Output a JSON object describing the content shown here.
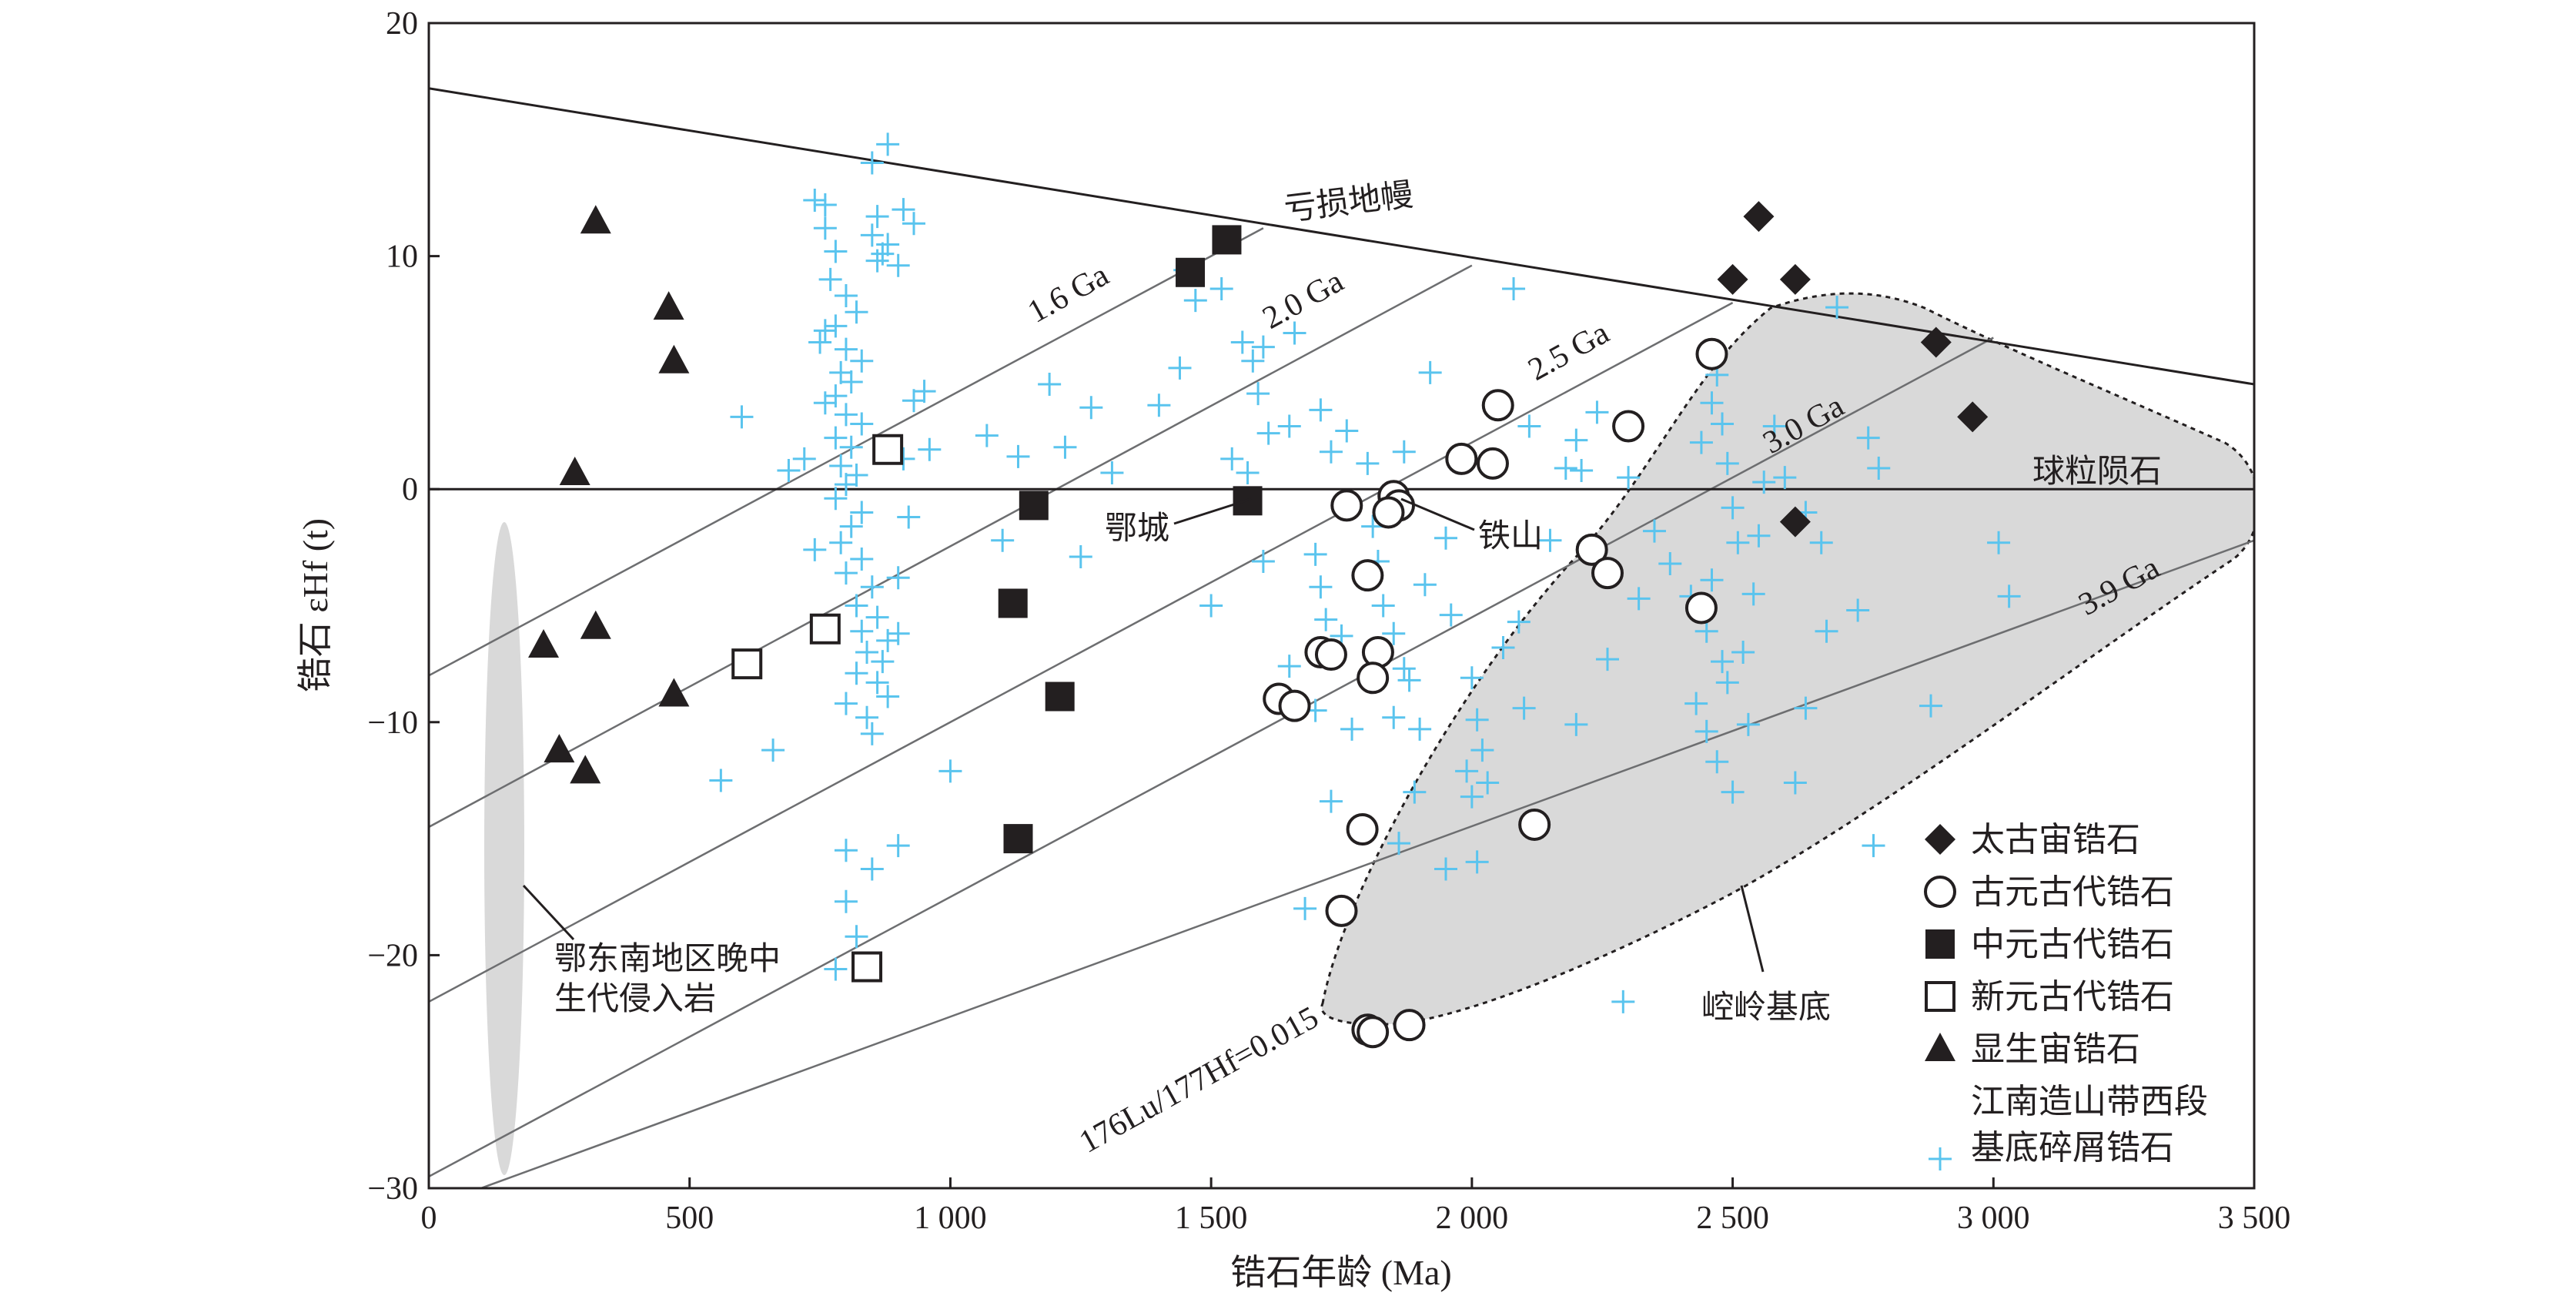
{
  "chart_data": {
    "type": "scatter",
    "xlabel": "锆石年龄 (Ma)",
    "ylabel": "锆石 εHf (t)",
    "xlim": [
      0,
      3500
    ],
    "ylim": [
      -30,
      20
    ],
    "x_ticks": [
      0,
      500,
      1000,
      1500,
      2000,
      2500,
      3000,
      3500
    ],
    "x_tick_labels": [
      "0",
      "500",
      "1 000",
      "1 500",
      "2 000",
      "2 500",
      "3 000",
      "3 500"
    ],
    "y_ticks": [
      -30,
      -20,
      -10,
      0,
      10,
      20
    ],
    "y_tick_labels": [
      "−30",
      "−20",
      "−10",
      "0",
      "10",
      "20"
    ],
    "grid": false,
    "legend_position": "bottom-right",
    "reference_lines": [
      {
        "name": "亏损地幔",
        "points": [
          [
            0,
            17.2
          ],
          [
            3500,
            4.5
          ]
        ]
      },
      {
        "name": "球粒陨石",
        "points": [
          [
            0,
            0
          ],
          [
            3500,
            0
          ]
        ]
      }
    ],
    "evolution_lines": [
      {
        "name": "1.6 Ga",
        "points": [
          [
            0,
            -8.0
          ],
          [
            1600,
            11.2
          ]
        ]
      },
      {
        "name": "2.0 Ga",
        "points": [
          [
            0,
            -14.5
          ],
          [
            2000,
            9.6
          ]
        ]
      },
      {
        "name": "2.5 Ga",
        "points": [
          [
            0,
            -22.0
          ],
          [
            2500,
            8.0
          ]
        ]
      },
      {
        "name": "3.0 Ga",
        "points": [
          [
            0,
            -29.5
          ],
          [
            3000,
            6.5
          ]
        ]
      },
      {
        "name": "3.9 Ga",
        "points": [
          [
            100,
            -30.0
          ],
          [
            3500,
            -2.2
          ]
        ]
      }
    ],
    "evolution_line_label": "176Lu/177Hf=0.015",
    "regions": [
      {
        "name": "崆岭基底",
        "fill": "#d9d9d9"
      },
      {
        "name": "鄂东南地区晚中生代侵入岩",
        "fill": "#d9d9d9"
      }
    ],
    "annotations": [
      "亏损地幔",
      "球粒陨石",
      "鄂城",
      "铁山",
      "崆岭基底",
      "鄂东南地区晚中生代侵入岩",
      "1.6 Ga",
      "2.0 Ga",
      "2.5 Ga",
      "3.0 Ga",
      "3.9 Ga",
      "176Lu/177Hf=0.015"
    ],
    "series": [
      {
        "name": "太古宙锆石",
        "marker": "diamond",
        "points": [
          [
            2550,
            11.7
          ],
          [
            2500,
            9.0
          ],
          [
            2620,
            9.0
          ],
          [
            2890,
            6.3
          ],
          [
            2960,
            3.1
          ],
          [
            2620,
            -1.4
          ]
        ]
      },
      {
        "name": "古元古代锆石",
        "marker": "circle-open",
        "points": [
          [
            2460,
            5.8
          ],
          [
            2050,
            3.6
          ],
          [
            2300,
            2.7
          ],
          [
            1980,
            1.3
          ],
          [
            2040,
            1.1
          ],
          [
            1760,
            -0.7
          ],
          [
            1850,
            -0.3
          ],
          [
            1860,
            -0.7
          ],
          [
            1840,
            -1.0
          ],
          [
            2230,
            -2.6
          ],
          [
            2260,
            -3.6
          ],
          [
            1800,
            -3.7
          ],
          [
            2440,
            -5.1
          ],
          [
            1710,
            -7.0
          ],
          [
            1730,
            -7.1
          ],
          [
            1820,
            -7.0
          ],
          [
            1810,
            -8.1
          ],
          [
            1630,
            -9.0
          ],
          [
            1660,
            -9.3
          ],
          [
            1790,
            -14.6
          ],
          [
            2120,
            -14.4
          ],
          [
            1750,
            -18.1
          ],
          [
            1800,
            -23.2
          ],
          [
            1810,
            -23.3
          ],
          [
            1880,
            -23.0
          ]
        ]
      },
      {
        "name": "中元古代锆石",
        "marker": "square-filled",
        "points": [
          [
            1460,
            9.3
          ],
          [
            1530,
            10.7
          ],
          [
            1160,
            -0.7
          ],
          [
            1570,
            -0.5
          ],
          [
            1120,
            -4.9
          ],
          [
            1210,
            -8.9
          ],
          [
            1130,
            -15.0
          ]
        ]
      },
      {
        "name": "新元古代锆石",
        "marker": "square-open",
        "points": [
          [
            880,
            1.7
          ],
          [
            760,
            -6.0
          ],
          [
            610,
            -7.5
          ],
          [
            840,
            -20.5
          ]
        ]
      },
      {
        "name": "显生宙锆石",
        "marker": "triangle",
        "points": [
          [
            320,
            11.5
          ],
          [
            460,
            7.8
          ],
          [
            470,
            5.5
          ],
          [
            280,
            0.7
          ],
          [
            220,
            -6.7
          ],
          [
            320,
            -5.9
          ],
          [
            470,
            -8.8
          ],
          [
            250,
            -11.2
          ],
          [
            300,
            -12.1
          ]
        ]
      },
      {
        "name": "江南造山带西段基底碎屑锆石",
        "marker": "plus",
        "points": [
          [
            880,
            14.8
          ],
          [
            850,
            14.0
          ],
          [
            910,
            12.0
          ],
          [
            860,
            11.7
          ],
          [
            930,
            11.4
          ],
          [
            850,
            10.9
          ],
          [
            880,
            10.5
          ],
          [
            870,
            10.1
          ],
          [
            860,
            9.8
          ],
          [
            900,
            9.6
          ],
          [
            740,
            12.4
          ],
          [
            760,
            12.2
          ],
          [
            760,
            11.2
          ],
          [
            780,
            10.2
          ],
          [
            770,
            9.0
          ],
          [
            800,
            8.3
          ],
          [
            820,
            7.6
          ],
          [
            780,
            7.0
          ],
          [
            760,
            6.8
          ],
          [
            750,
            6.3
          ],
          [
            800,
            6.0
          ],
          [
            830,
            5.5
          ],
          [
            790,
            5.0
          ],
          [
            810,
            4.6
          ],
          [
            780,
            4.0
          ],
          [
            760,
            3.7
          ],
          [
            800,
            3.2
          ],
          [
            830,
            2.8
          ],
          [
            780,
            2.2
          ],
          [
            810,
            1.8
          ],
          [
            790,
            1.0
          ],
          [
            820,
            0.6
          ],
          [
            800,
            0.2
          ],
          [
            780,
            -0.4
          ],
          [
            830,
            -1.0
          ],
          [
            810,
            -1.6
          ],
          [
            790,
            -2.3
          ],
          [
            830,
            -3.0
          ],
          [
            800,
            -3.6
          ],
          [
            850,
            -4.2
          ],
          [
            820,
            -5.0
          ],
          [
            860,
            -5.5
          ],
          [
            830,
            -6.1
          ],
          [
            880,
            -6.5
          ],
          [
            840,
            -7.0
          ],
          [
            870,
            -7.4
          ],
          [
            820,
            -7.9
          ],
          [
            860,
            -8.3
          ],
          [
            800,
            -9.2
          ],
          [
            840,
            -9.8
          ],
          [
            850,
            -10.5
          ],
          [
            880,
            -8.9
          ],
          [
            900,
            -6.2
          ],
          [
            900,
            -3.8
          ],
          [
            920,
            -1.2
          ],
          [
            910,
            1.3
          ],
          [
            930,
            3.8
          ],
          [
            950,
            4.2
          ],
          [
            960,
            1.7
          ],
          [
            1000,
            -12.1
          ],
          [
            800,
            -15.5
          ],
          [
            850,
            -16.3
          ],
          [
            800,
            -17.7
          ],
          [
            820,
            -19.2
          ],
          [
            780,
            -20.6
          ],
          [
            900,
            -15.3
          ],
          [
            600,
            3.1
          ],
          [
            560,
            -12.5
          ],
          [
            660,
            -11.2
          ],
          [
            720,
            1.3
          ],
          [
            740,
            -2.6
          ],
          [
            690,
            0.8
          ],
          [
            1070,
            2.3
          ],
          [
            1100,
            -2.2
          ],
          [
            1130,
            1.4
          ],
          [
            1190,
            4.5
          ],
          [
            1220,
            1.8
          ],
          [
            1250,
            -2.9
          ],
          [
            1270,
            3.5
          ],
          [
            1310,
            0.7
          ],
          [
            1400,
            3.6
          ],
          [
            1440,
            5.2
          ],
          [
            1450,
            9.4
          ],
          [
            1470,
            8.1
          ],
          [
            1520,
            8.6
          ],
          [
            1560,
            6.3
          ],
          [
            1580,
            5.5
          ],
          [
            1600,
            6.1
          ],
          [
            1590,
            4.1
          ],
          [
            1610,
            2.4
          ],
          [
            1570,
            0.7
          ],
          [
            1540,
            1.3
          ],
          [
            1650,
            2.7
          ],
          [
            1660,
            6.7
          ],
          [
            1710,
            3.4
          ],
          [
            1730,
            1.6
          ],
          [
            1760,
            2.5
          ],
          [
            1700,
            -2.8
          ],
          [
            1710,
            -4.2
          ],
          [
            1720,
            -5.6
          ],
          [
            1750,
            -6.3
          ],
          [
            1650,
            -7.6
          ],
          [
            1600,
            -3.1
          ],
          [
            1500,
            -5.0
          ],
          [
            1800,
            1.1
          ],
          [
            1810,
            -1.6
          ],
          [
            1820,
            -3.1
          ],
          [
            1830,
            -5.0
          ],
          [
            1850,
            -6.2
          ],
          [
            1870,
            -7.7
          ],
          [
            1880,
            -8.2
          ],
          [
            1850,
            -9.8
          ],
          [
            1900,
            -10.3
          ],
          [
            1910,
            -4.1
          ],
          [
            1950,
            -2.1
          ],
          [
            1960,
            -5.4
          ],
          [
            2000,
            -8.1
          ],
          [
            2010,
            -9.9
          ],
          [
            2020,
            -11.2
          ],
          [
            1990,
            -12.1
          ],
          [
            2030,
            -12.6
          ],
          [
            2000,
            -13.2
          ],
          [
            1950,
            -16.3
          ],
          [
            2010,
            -16.0
          ],
          [
            1770,
            -10.3
          ],
          [
            1730,
            -13.4
          ],
          [
            1680,
            -18.0
          ],
          [
            1700,
            -9.5
          ],
          [
            2060,
            -6.8
          ],
          [
            2090,
            -5.7
          ],
          [
            2150,
            -2.2
          ],
          [
            2180,
            0.9
          ],
          [
            2200,
            2.1
          ],
          [
            2240,
            3.3
          ],
          [
            2300,
            0.5
          ],
          [
            2350,
            -1.8
          ],
          [
            2380,
            -3.2
          ],
          [
            2420,
            -4.6
          ],
          [
            2440,
            2.0
          ],
          [
            2460,
            3.7
          ],
          [
            2470,
            4.9
          ],
          [
            2480,
            2.8
          ],
          [
            2490,
            1.1
          ],
          [
            2500,
            -0.8
          ],
          [
            2510,
            -2.3
          ],
          [
            2460,
            -3.9
          ],
          [
            2450,
            -6.1
          ],
          [
            2480,
            -7.4
          ],
          [
            2490,
            -8.3
          ],
          [
            2430,
            -9.2
          ],
          [
            2450,
            -10.4
          ],
          [
            2470,
            -11.7
          ],
          [
            2500,
            -13.0
          ],
          [
            2530,
            -10.1
          ],
          [
            2520,
            -7.0
          ],
          [
            2540,
            -4.5
          ],
          [
            2550,
            -2.0
          ],
          [
            2560,
            0.3
          ],
          [
            2580,
            2.7
          ],
          [
            2600,
            0.5
          ],
          [
            2640,
            -1.0
          ],
          [
            2670,
            -2.3
          ],
          [
            2680,
            -6.1
          ],
          [
            2640,
            -9.4
          ],
          [
            2620,
            -12.6
          ],
          [
            2740,
            -5.2
          ],
          [
            2700,
            7.8
          ],
          [
            2760,
            2.2
          ],
          [
            2780,
            0.9
          ],
          [
            2770,
            -15.3
          ],
          [
            2880,
            -9.3
          ],
          [
            3010,
            -2.3
          ],
          [
            3030,
            -4.6
          ],
          [
            2260,
            -7.3
          ],
          [
            2200,
            -10.1
          ],
          [
            2100,
            -9.4
          ],
          [
            1890,
            -13.0
          ],
          [
            1860,
            -15.2
          ],
          [
            2290,
            -22.0
          ],
          [
            2210,
            0.8
          ],
          [
            2110,
            2.7
          ],
          [
            1870,
            1.6
          ],
          [
            1920,
            5.0
          ],
          [
            2080,
            8.6
          ],
          [
            2320,
            -4.7
          ]
        ]
      }
    ]
  }
}
